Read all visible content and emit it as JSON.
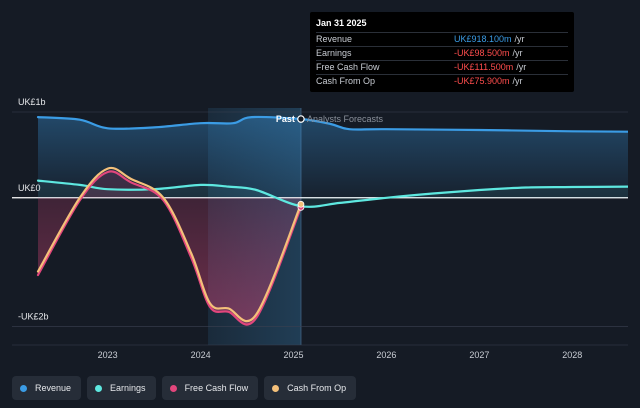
{
  "chart_data": {
    "type": "line",
    "y_unit": "UK£",
    "y_tick_labels": [
      {
        "label": "UK£1b",
        "value": 1000
      },
      {
        "label": "UK£0",
        "value": 0
      },
      {
        "label": "-UK£2b",
        "value": -1500
      }
    ],
    "ylim": [
      -1600,
      1000
    ],
    "xlim": [
      2022.25,
      2028.6
    ],
    "x_ticks": [
      "2023",
      "2024",
      "2025",
      "2026",
      "2027",
      "2028"
    ],
    "past_label": "Past",
    "forecast_label": "Analysts Forecasts",
    "past_end": 2025.08,
    "shade_start": 2024.08,
    "series": [
      {
        "name": "Revenue",
        "color": "#3b9ce5",
        "x": [
          2022.25,
          2022.7,
          2023.0,
          2023.5,
          2024.0,
          2024.35,
          2024.55,
          2025.08,
          2025.4,
          2025.6,
          2026.0,
          2027.0,
          2028.0,
          2028.6
        ],
        "y": [
          940,
          910,
          810,
          820,
          870,
          870,
          940,
          918.1,
          860,
          800,
          800,
          790,
          775,
          770
        ]
      },
      {
        "name": "Earnings",
        "color": "#5ee8e0",
        "x": [
          2022.25,
          2022.7,
          2023.0,
          2023.5,
          2024.0,
          2024.3,
          2024.6,
          2025.08,
          2025.5,
          2026.0,
          2026.5,
          2027.0,
          2027.5,
          2028.0,
          2028.6
        ],
        "y": [
          200,
          150,
          100,
          100,
          150,
          130,
          90,
          -98.5,
          -60,
          0,
          50,
          90,
          120,
          125,
          130
        ]
      },
      {
        "name": "Free Cash Flow",
        "color": "#e2467c",
        "x": [
          2022.25,
          2022.7,
          2023.0,
          2023.25,
          2023.6,
          2023.9,
          2024.1,
          2024.3,
          2024.6,
          2025.08
        ],
        "y": [
          -900,
          -30,
          300,
          180,
          -30,
          -700,
          -1270,
          -1330,
          -1400,
          -111.5
        ]
      },
      {
        "name": "Cash From Op",
        "color": "#f4c07a",
        "x": [
          2022.25,
          2022.7,
          2023.0,
          2023.25,
          2023.6,
          2023.9,
          2024.1,
          2024.3,
          2024.6,
          2025.08
        ],
        "y": [
          -860,
          0,
          340,
          220,
          0,
          -650,
          -1230,
          -1290,
          -1360,
          -75.9
        ]
      }
    ]
  },
  "tooltip": {
    "date": "Jan 31 2025",
    "rows": [
      {
        "label": "Revenue",
        "value": "UK£918.100m",
        "unit": "/yr",
        "color": "#3b9ce5"
      },
      {
        "label": "Earnings",
        "value": "-UK£98.500m",
        "unit": "/yr",
        "color": "#ff4d4d"
      },
      {
        "label": "Free Cash Flow",
        "value": "-UK£111.500m",
        "unit": "/yr",
        "color": "#ff4d4d"
      },
      {
        "label": "Cash From Op",
        "value": "-UK£75.900m",
        "unit": "/yr",
        "color": "#ff4d4d"
      }
    ]
  },
  "legend": [
    {
      "label": "Revenue",
      "color": "#3b9ce5"
    },
    {
      "label": "Earnings",
      "color": "#5ee8e0"
    },
    {
      "label": "Free Cash Flow",
      "color": "#e2467c"
    },
    {
      "label": "Cash From Op",
      "color": "#f4c07a"
    }
  ]
}
